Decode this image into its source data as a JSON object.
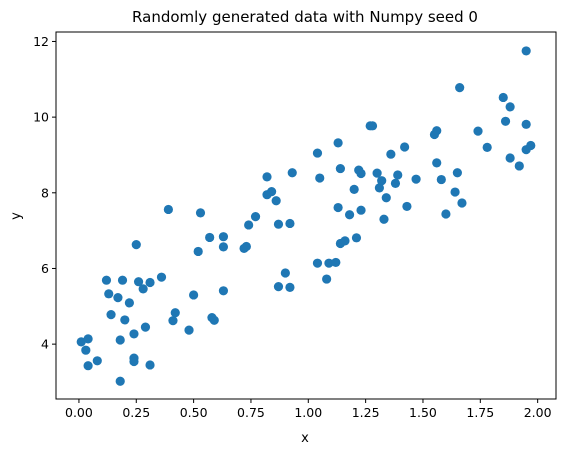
{
  "chart_data": {
    "type": "scatter",
    "title": "Randomly generated data with Numpy seed 0",
    "xlabel": "x",
    "ylabel": "y",
    "xlim": [
      -0.1,
      2.08
    ],
    "ylim": [
      2.55,
      12.25
    ],
    "xticks": [
      0.0,
      0.25,
      0.5,
      0.75,
      1.0,
      1.25,
      1.5,
      1.75,
      2.0
    ],
    "xtick_labels": [
      "0.00",
      "0.25",
      "0.50",
      "0.75",
      "1.00",
      "1.25",
      "1.50",
      "1.75",
      "2.00"
    ],
    "yticks": [
      4,
      6,
      8,
      10,
      12
    ],
    "ytick_labels": [
      "4",
      "6",
      "8",
      "10",
      "12"
    ],
    "grid": false,
    "marker_color": "#1f77b4",
    "series": [
      {
        "points": [
          [
            0.01,
            4.06
          ],
          [
            0.03,
            3.84
          ],
          [
            0.04,
            4.14
          ],
          [
            0.04,
            3.43
          ],
          [
            0.08,
            3.56
          ],
          [
            0.12,
            5.69
          ],
          [
            0.13,
            5.33
          ],
          [
            0.14,
            4.78
          ],
          [
            0.17,
            5.23
          ],
          [
            0.18,
            4.11
          ],
          [
            0.18,
            3.02
          ],
          [
            0.19,
            5.69
          ],
          [
            0.2,
            4.64
          ],
          [
            0.22,
            5.09
          ],
          [
            0.24,
            4.27
          ],
          [
            0.24,
            3.63
          ],
          [
            0.24,
            3.54
          ],
          [
            0.25,
            6.63
          ],
          [
            0.26,
            5.65
          ],
          [
            0.28,
            5.46
          ],
          [
            0.29,
            4.45
          ],
          [
            0.31,
            3.45
          ],
          [
            0.31,
            5.63
          ],
          [
            0.36,
            5.77
          ],
          [
            0.39,
            7.56
          ],
          [
            0.41,
            4.62
          ],
          [
            0.42,
            4.83
          ],
          [
            0.48,
            4.37
          ],
          [
            0.5,
            5.3
          ],
          [
            0.52,
            6.45
          ],
          [
            0.53,
            7.47
          ],
          [
            0.57,
            6.82
          ],
          [
            0.58,
            4.7
          ],
          [
            0.59,
            4.63
          ],
          [
            0.63,
            6.57
          ],
          [
            0.63,
            6.84
          ],
          [
            0.63,
            5.41
          ],
          [
            0.72,
            6.53
          ],
          [
            0.73,
            6.58
          ],
          [
            0.74,
            7.15
          ],
          [
            0.77,
            7.37
          ],
          [
            0.82,
            7.95
          ],
          [
            0.82,
            8.42
          ],
          [
            0.84,
            8.03
          ],
          [
            0.86,
            7.79
          ],
          [
            0.87,
            7.17
          ],
          [
            0.87,
            5.52
          ],
          [
            0.9,
            5.88
          ],
          [
            0.92,
            5.5
          ],
          [
            0.92,
            7.19
          ],
          [
            0.93,
            8.53
          ],
          [
            1.04,
            6.14
          ],
          [
            1.04,
            9.05
          ],
          [
            1.05,
            8.39
          ],
          [
            1.08,
            5.72
          ],
          [
            1.09,
            6.14
          ],
          [
            1.12,
            6.16
          ],
          [
            1.13,
            9.32
          ],
          [
            1.13,
            7.61
          ],
          [
            1.14,
            6.66
          ],
          [
            1.14,
            8.64
          ],
          [
            1.16,
            6.73
          ],
          [
            1.18,
            7.42
          ],
          [
            1.2,
            8.09
          ],
          [
            1.21,
            6.81
          ],
          [
            1.22,
            8.6
          ],
          [
            1.23,
            8.51
          ],
          [
            1.23,
            7.54
          ],
          [
            1.27,
            9.77
          ],
          [
            1.28,
            9.77
          ],
          [
            1.3,
            8.52
          ],
          [
            1.31,
            8.13
          ],
          [
            1.32,
            8.32
          ],
          [
            1.33,
            7.3
          ],
          [
            1.34,
            7.87
          ],
          [
            1.36,
            9.02
          ],
          [
            1.38,
            8.25
          ],
          [
            1.39,
            8.47
          ],
          [
            1.42,
            9.21
          ],
          [
            1.43,
            7.64
          ],
          [
            1.47,
            8.36
          ],
          [
            1.55,
            9.54
          ],
          [
            1.56,
            9.64
          ],
          [
            1.56,
            8.79
          ],
          [
            1.58,
            8.35
          ],
          [
            1.6,
            7.44
          ],
          [
            1.64,
            8.02
          ],
          [
            1.65,
            8.53
          ],
          [
            1.66,
            10.78
          ],
          [
            1.67,
            7.73
          ],
          [
            1.74,
            9.63
          ],
          [
            1.78,
            9.2
          ],
          [
            1.85,
            10.52
          ],
          [
            1.86,
            9.89
          ],
          [
            1.88,
            10.27
          ],
          [
            1.88,
            8.92
          ],
          [
            1.92,
            8.71
          ],
          [
            1.95,
            11.75
          ],
          [
            1.95,
            9.81
          ],
          [
            1.95,
            9.14
          ],
          [
            1.97,
            9.25
          ]
        ]
      }
    ]
  }
}
